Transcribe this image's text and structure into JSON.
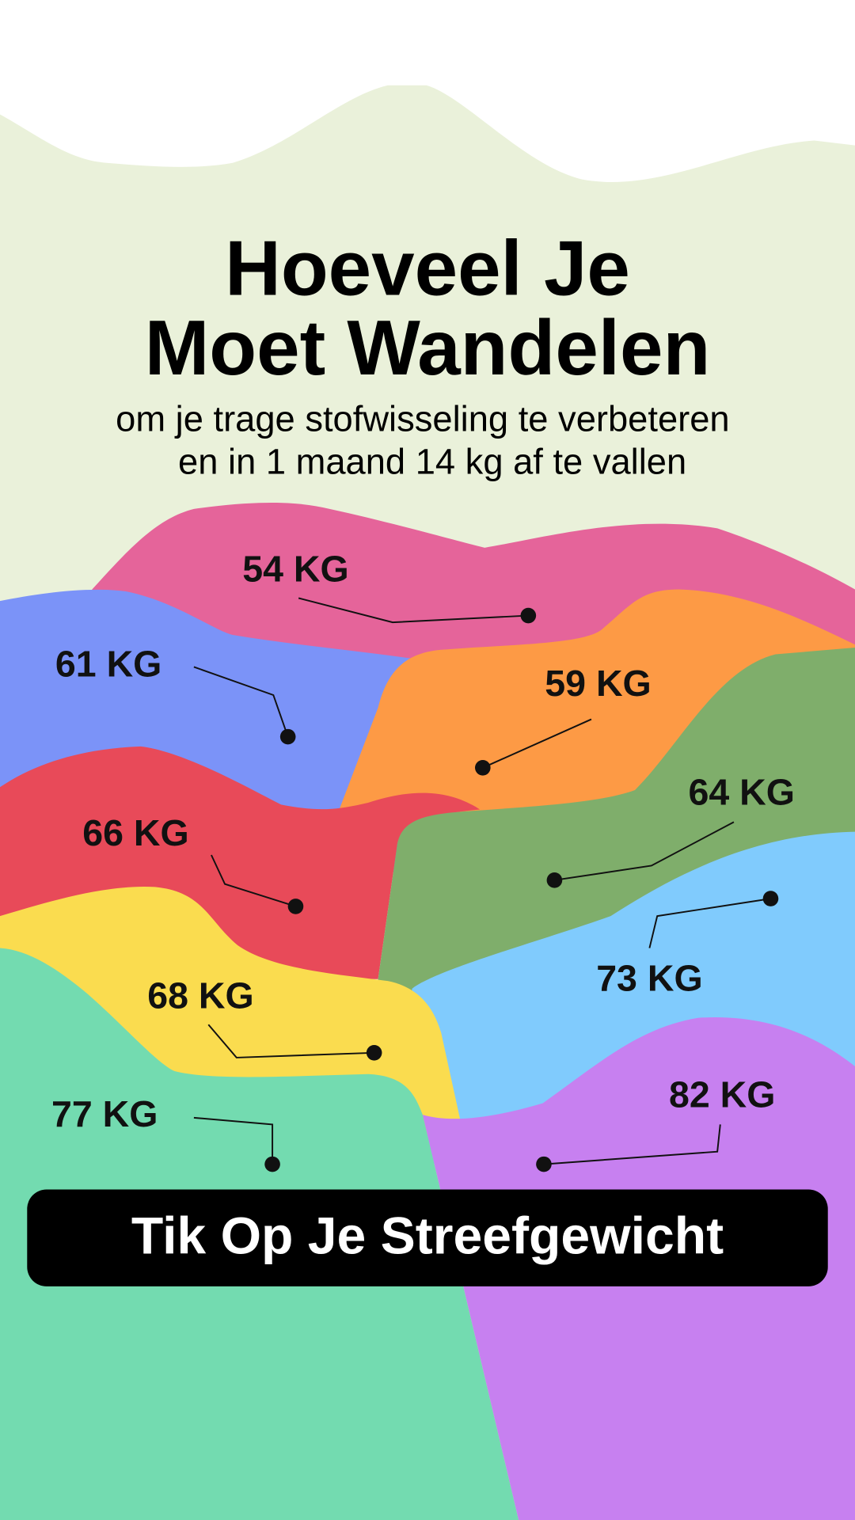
{
  "header": {
    "title": [
      "Hoeveel Je",
      "Moet Wandelen"
    ],
    "subtitle": [
      "om je trage stofwisseling te verbeteren",
      "en in 1 maand 14 kg af te vallen"
    ]
  },
  "options": [
    {
      "label": "54 KG"
    },
    {
      "label": "61 KG"
    },
    {
      "label": "59 KG"
    },
    {
      "label": "64 KG"
    },
    {
      "label": "66 KG"
    },
    {
      "label": "73 KG"
    },
    {
      "label": "68 KG"
    },
    {
      "label": "77 KG"
    },
    {
      "label": "82 KG"
    }
  ],
  "button": {
    "label": "Tik Op Je Streefgewicht"
  }
}
